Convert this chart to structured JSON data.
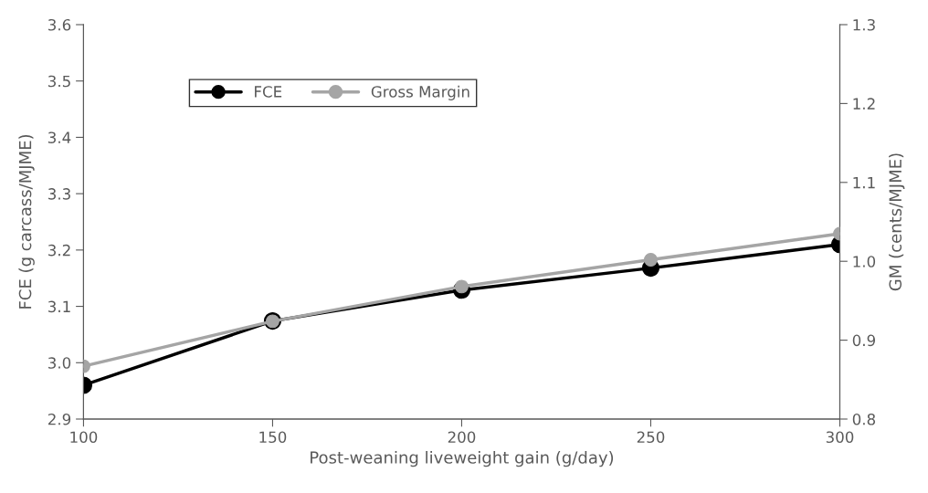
{
  "chart_data": {
    "type": "line",
    "xlabel": "Post-weaning liveweight gain (g/day)",
    "ylabel": "FCE (g carcass/MJME)",
    "y2label": "GM (cents/MJME)",
    "x": [
      100,
      150,
      200,
      250,
      300
    ],
    "series": [
      {
        "name": "FCE",
        "color": "#000000",
        "values": [
          2.96,
          3.074,
          3.129,
          3.168,
          3.21
        ]
      },
      {
        "name": "Gross Margin",
        "color": "#a5a5a5",
        "axis": "y2",
        "values": [
          0.867,
          0.924,
          0.968,
          1.002,
          1.035
        ]
      }
    ],
    "xlim": [
      100,
      300
    ],
    "xticks": [
      100,
      150,
      200,
      250,
      300
    ],
    "ylim": [
      2.9,
      3.6
    ],
    "yticks": [
      {
        "value": 2.9,
        "label": "2.9"
      },
      {
        "value": 3.0,
        "label": "3.0"
      },
      {
        "value": 3.1,
        "label": "3.1"
      },
      {
        "value": 3.2,
        "label": "3.2"
      },
      {
        "value": 3.3,
        "label": "3.3"
      },
      {
        "value": 3.4,
        "label": "3.4"
      },
      {
        "value": 3.5,
        "label": "3.5"
      },
      {
        "value": 3.6,
        "label": "3.6"
      }
    ],
    "y2lim": [
      0.8,
      1.3
    ],
    "y2ticks": [
      {
        "value": 0.8,
        "label": "0.8"
      },
      {
        "value": 0.9,
        "label": "0.9"
      },
      {
        "value": 1.0,
        "label": "1.0"
      },
      {
        "value": 1.1,
        "label": "1.1"
      },
      {
        "value": 1.2,
        "label": "1.2"
      },
      {
        "value": 1.3,
        "label": "1.3"
      }
    ],
    "grid": false,
    "legend": "top left",
    "marker": "circle",
    "line_style": "solid"
  }
}
